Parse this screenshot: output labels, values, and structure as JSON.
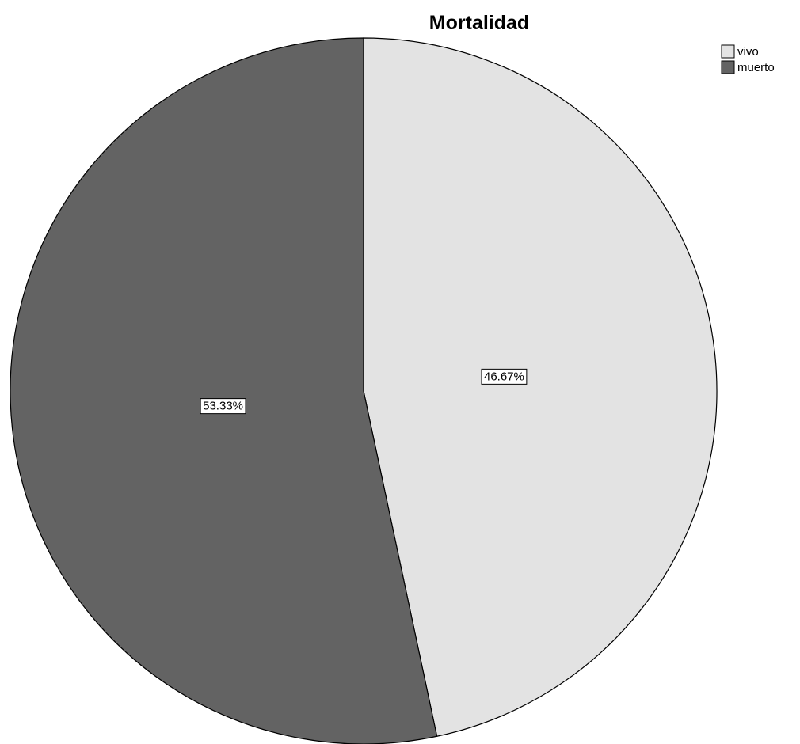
{
  "chart_data": {
    "type": "pie",
    "title": "Mortalidad",
    "start_angle_deg": 0,
    "direction": "clockwise",
    "slices": [
      {
        "name": "vivo",
        "value": 46.67,
        "label": "46.67%",
        "color": "#e3e3e3"
      },
      {
        "name": "muerto",
        "value": 53.33,
        "label": "53.33%",
        "color": "#636363"
      }
    ],
    "legend": {
      "placement": "top-right",
      "entries": [
        "vivo",
        "muerto"
      ]
    }
  }
}
